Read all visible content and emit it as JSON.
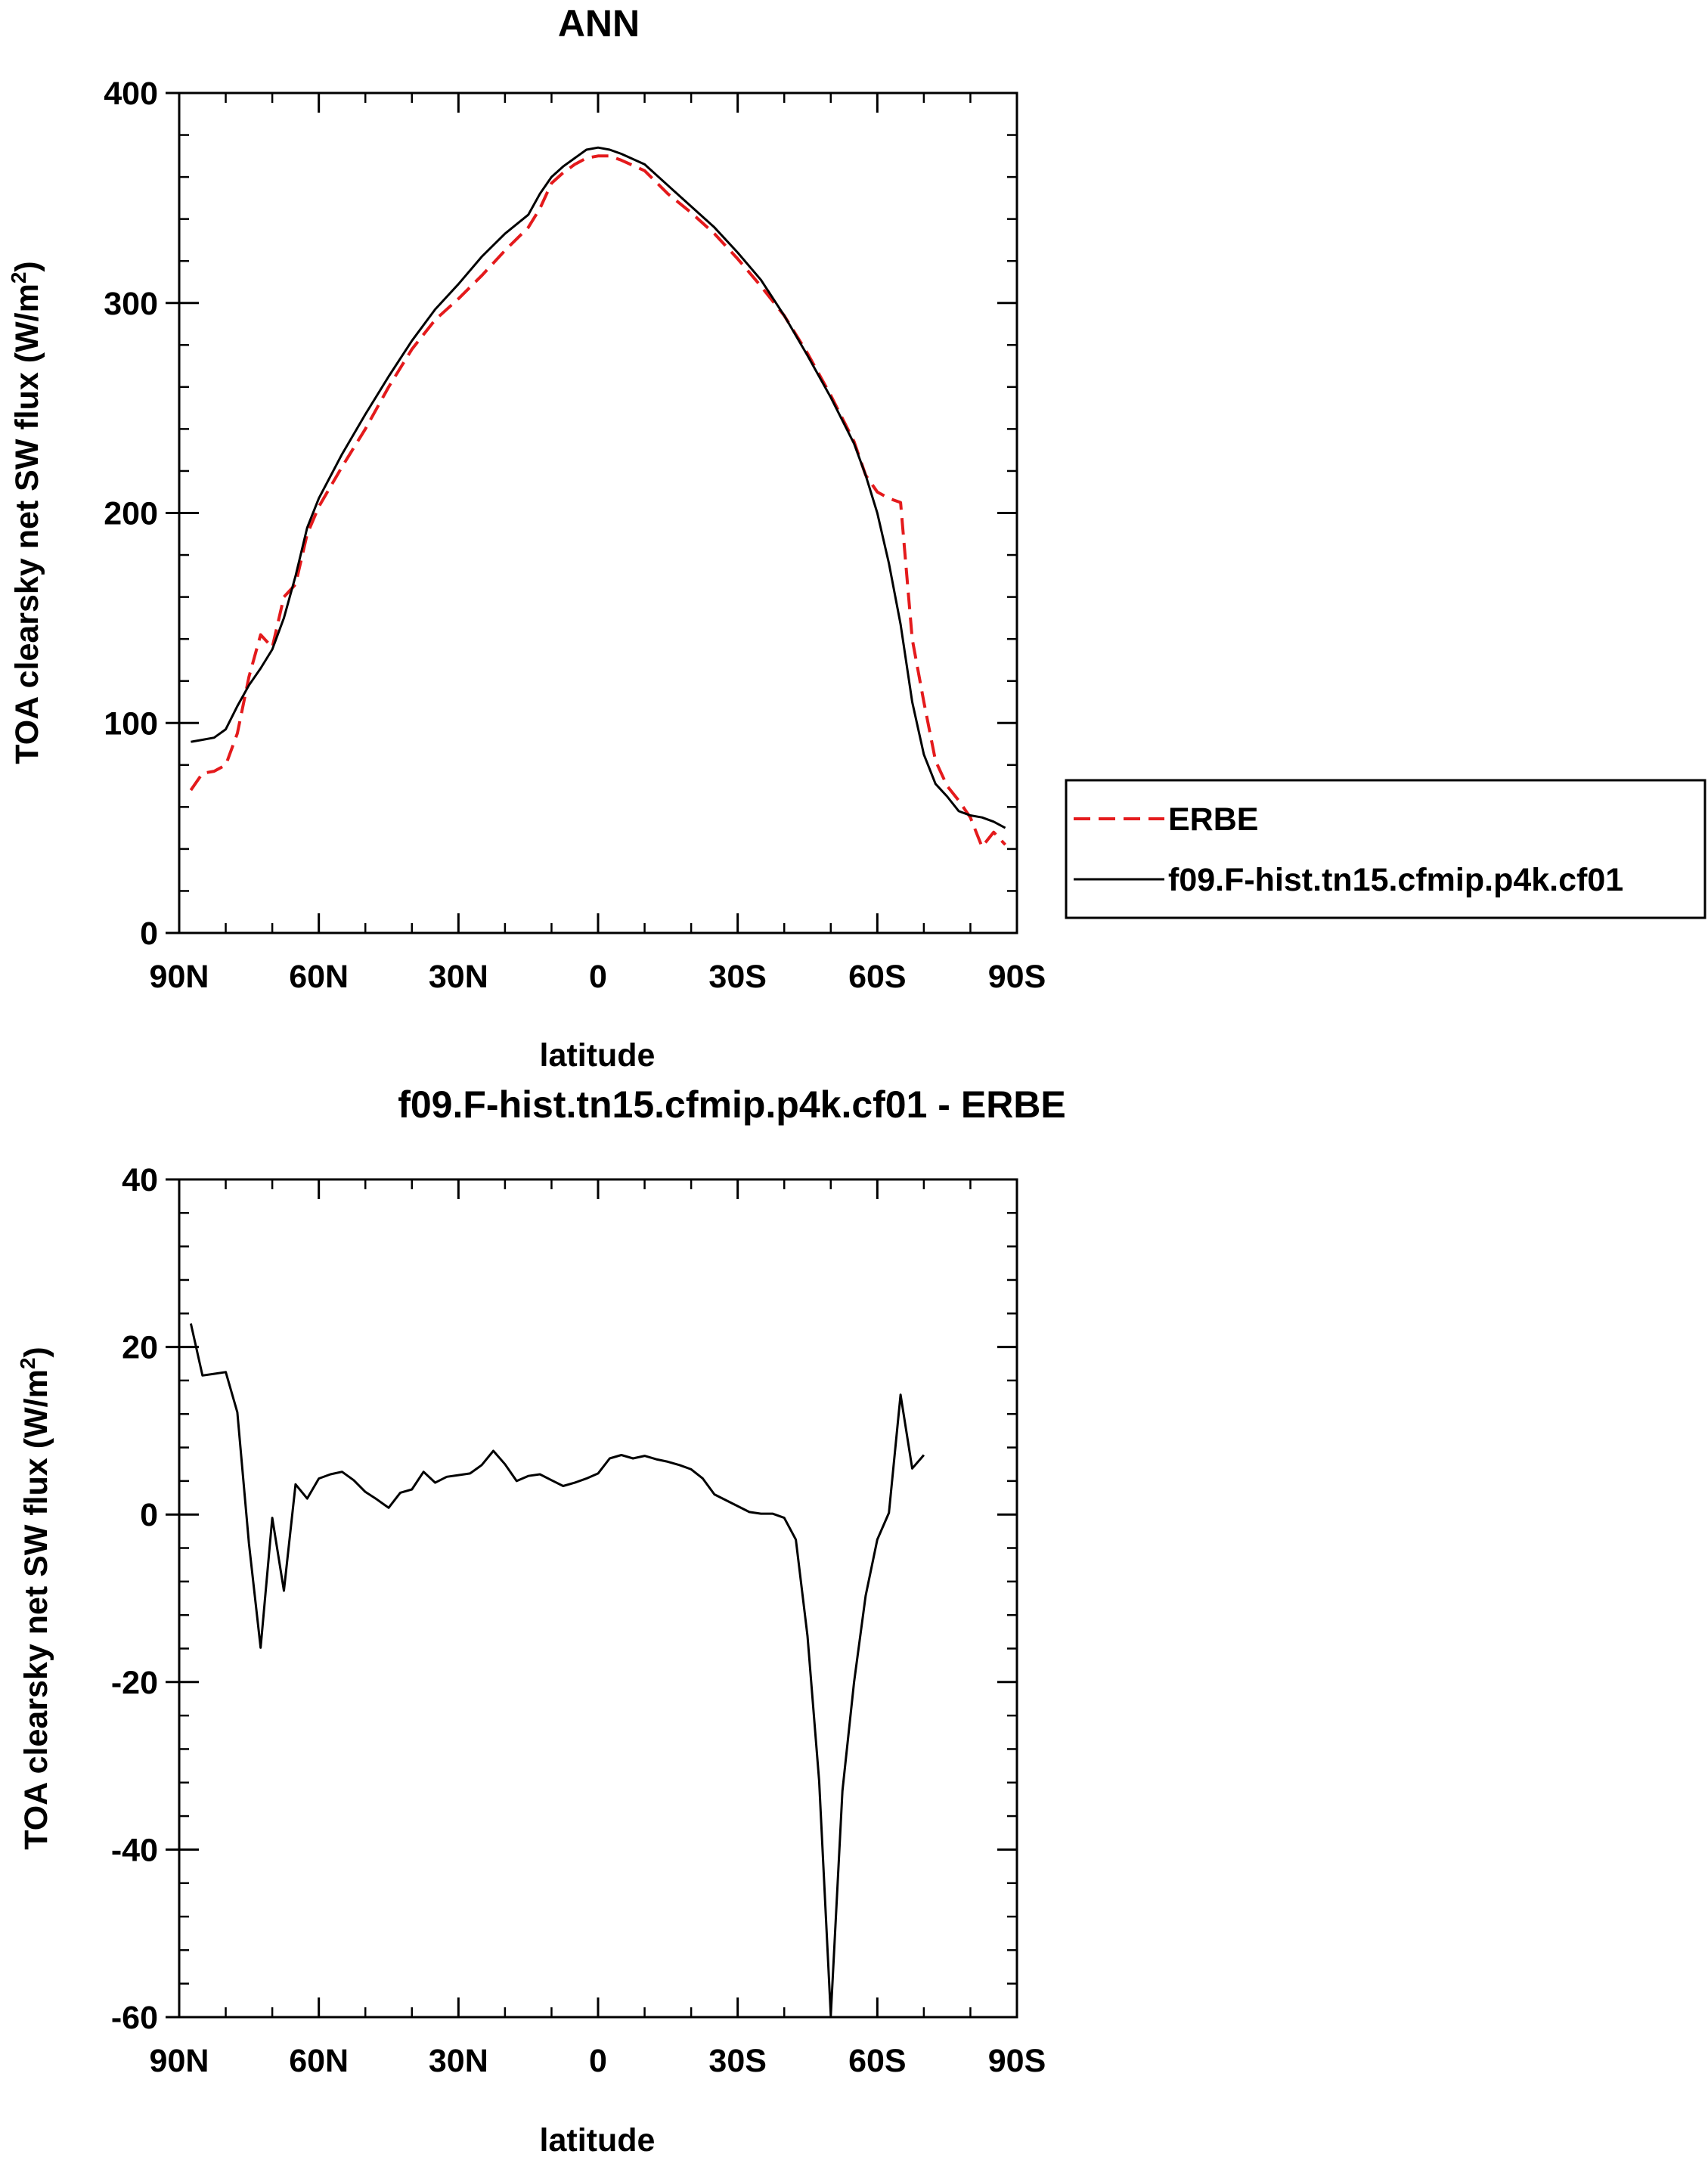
{
  "chart_data": [
    {
      "type": "line",
      "title": "ANN",
      "xlabel": "latitude",
      "ylabel": "TOA clearsky net SW flux (W/m",
      "ylabel_sup": "2",
      "ylabel_end": ")",
      "xlim": [
        90,
        -90
      ],
      "ylim": [
        0,
        400
      ],
      "x_ticks": [
        90,
        60,
        30,
        0,
        -30,
        -60,
        -90
      ],
      "x_tick_labels": [
        "90N",
        "60N",
        "30N",
        "0",
        "30S",
        "60S",
        "90S"
      ],
      "y_ticks": [
        0,
        100,
        200,
        300,
        400
      ],
      "y_tick_labels": [
        "0",
        "100",
        "200",
        "300",
        "400"
      ],
      "legend": {
        "placement": "right",
        "entries": [
          "ERBE",
          "f09.F-hist.tn15.cfmip.p4k.cf01"
        ]
      },
      "series": [
        {
          "name": "ERBE",
          "color": "#e41a1c",
          "dash": "dashed",
          "points": [
            [
              87.5,
              68
            ],
            [
              85,
              76
            ],
            [
              82.5,
              77
            ],
            [
              80,
              80
            ],
            [
              77.5,
              95
            ],
            [
              75,
              122
            ],
            [
              72.5,
              142
            ],
            [
              70,
              136
            ],
            [
              67.5,
              160
            ],
            [
              65,
              166
            ],
            [
              62.5,
              190
            ],
            [
              60,
              203
            ],
            [
              55,
              222
            ],
            [
              50,
              240
            ],
            [
              45,
              260
            ],
            [
              40,
              278
            ],
            [
              35,
              292
            ],
            [
              30,
              302
            ],
            [
              25,
              313
            ],
            [
              20,
              325
            ],
            [
              15,
              336
            ],
            [
              12.5,
              345
            ],
            [
              10,
              357
            ],
            [
              7.5,
              362
            ],
            [
              5,
              366
            ],
            [
              2.5,
              369
            ],
            [
              0,
              370
            ],
            [
              -2.5,
              370
            ],
            [
              -5,
              368
            ],
            [
              -10,
              363
            ],
            [
              -15,
              352
            ],
            [
              -20,
              343
            ],
            [
              -25,
              333
            ],
            [
              -30,
              321
            ],
            [
              -35,
              308
            ],
            [
              -40,
              294
            ],
            [
              -45,
              276
            ],
            [
              -50,
              256
            ],
            [
              -55,
              234
            ],
            [
              -57.5,
              218
            ],
            [
              -60,
              210
            ],
            [
              -62.5,
              207
            ],
            [
              -65,
              205
            ],
            [
              -67.5,
              140
            ],
            [
              -70,
              110
            ],
            [
              -72.5,
              82
            ],
            [
              -75,
              70
            ],
            [
              -77.5,
              63
            ],
            [
              -80,
              55
            ],
            [
              -82.5,
              41
            ],
            [
              -85,
              48
            ],
            [
              -87.5,
              42
            ]
          ]
        },
        {
          "name": "f09.F-hist.tn15.cfmip.p4k.cf01",
          "color": "#000000",
          "dash": "solid",
          "points": [
            [
              87.5,
              91
            ],
            [
              85,
              92
            ],
            [
              82.5,
              93
            ],
            [
              80,
              97
            ],
            [
              77.5,
              108
            ],
            [
              75,
              118
            ],
            [
              72.5,
              126
            ],
            [
              70,
              135
            ],
            [
              67.5,
              150
            ],
            [
              65,
              170
            ],
            [
              62.5,
              193
            ],
            [
              60,
              207
            ],
            [
              55,
              228
            ],
            [
              50,
              247
            ],
            [
              45,
              265
            ],
            [
              40,
              282
            ],
            [
              35,
              297
            ],
            [
              30,
              309
            ],
            [
              25,
              322
            ],
            [
              20,
              333
            ],
            [
              15,
              342
            ],
            [
              12.5,
              352
            ],
            [
              10,
              360
            ],
            [
              7.5,
              365
            ],
            [
              5,
              369
            ],
            [
              2.5,
              373
            ],
            [
              0,
              374
            ],
            [
              -2.5,
              373
            ],
            [
              -5,
              371
            ],
            [
              -10,
              366
            ],
            [
              -15,
              356
            ],
            [
              -20,
              346
            ],
            [
              -25,
              336
            ],
            [
              -30,
              324
            ],
            [
              -35,
              311
            ],
            [
              -40,
              294
            ],
            [
              -45,
              275
            ],
            [
              -50,
              255
            ],
            [
              -55,
              233
            ],
            [
              -57.5,
              218
            ],
            [
              -60,
              200
            ],
            [
              -62.5,
              176
            ],
            [
              -65,
              147
            ],
            [
              -67.5,
              110
            ],
            [
              -70,
              85
            ],
            [
              -72.5,
              71
            ],
            [
              -75,
              65
            ],
            [
              -77.5,
              58
            ],
            [
              -80,
              56
            ],
            [
              -82.5,
              55
            ],
            [
              -85,
              53
            ],
            [
              -87.5,
              50
            ]
          ]
        }
      ]
    },
    {
      "type": "line",
      "title": "f09.F-hist.tn15.cfmip.p4k.cf01 - ERBE",
      "xlabel": "latitude",
      "ylabel": "TOA clearsky net SW flux (W/m",
      "ylabel_sup": "2",
      "ylabel_end": ")",
      "xlim": [
        90,
        -90
      ],
      "ylim": [
        -60,
        40
      ],
      "x_ticks": [
        90,
        60,
        30,
        0,
        -30,
        -60,
        -90
      ],
      "x_tick_labels": [
        "90N",
        "60N",
        "30N",
        "0",
        "30S",
        "60S",
        "90S"
      ],
      "y_ticks": [
        -60,
        -40,
        -20,
        0,
        20,
        40
      ],
      "y_tick_labels": [
        "-60",
        "-40",
        "-20",
        "0",
        "20",
        "40"
      ],
      "series": [
        {
          "color": "#000000",
          "dash": "solid",
          "points": [
            [
              87.5,
              22.8
            ],
            [
              85,
              16.6
            ],
            [
              82.5,
              16.8
            ],
            [
              80,
              17.0
            ],
            [
              77.5,
              12.2
            ],
            [
              75,
              -3.5
            ],
            [
              72.5,
              -15.9
            ],
            [
              70,
              -0.4
            ],
            [
              67.5,
              -9.1
            ],
            [
              65,
              3.6
            ],
            [
              62.5,
              1.9
            ],
            [
              60,
              4.3
            ],
            [
              57.5,
              4.8
            ],
            [
              55,
              5.1
            ],
            [
              52.5,
              4.1
            ],
            [
              50,
              2.7
            ],
            [
              47.5,
              1.8
            ],
            [
              45,
              0.8
            ],
            [
              42.5,
              2.6
            ],
            [
              40,
              3.0
            ],
            [
              37.5,
              5.1
            ],
            [
              35,
              3.8
            ],
            [
              32.5,
              4.5
            ],
            [
              30,
              4.7
            ],
            [
              27.5,
              4.9
            ],
            [
              25,
              5.9
            ],
            [
              22.5,
              7.6
            ],
            [
              20,
              6.0
            ],
            [
              17.5,
              4.0
            ],
            [
              15,
              4.6
            ],
            [
              12.5,
              4.8
            ],
            [
              10,
              4.1
            ],
            [
              7.5,
              3.4
            ],
            [
              5,
              3.8
            ],
            [
              2.5,
              4.3
            ],
            [
              0,
              4.9
            ],
            [
              -2.5,
              6.7
            ],
            [
              -5,
              7.1
            ],
            [
              -7.5,
              6.7
            ],
            [
              -10,
              7.0
            ],
            [
              -12.5,
              6.6
            ],
            [
              -15,
              6.3
            ],
            [
              -17.5,
              5.9
            ],
            [
              -20,
              5.4
            ],
            [
              -22.5,
              4.3
            ],
            [
              -25,
              2.4
            ],
            [
              -27.5,
              1.7
            ],
            [
              -30,
              1.0
            ],
            [
              -32.5,
              0.3
            ],
            [
              -35,
              0.1
            ],
            [
              -37.5,
              0.1
            ],
            [
              -40,
              -0.4
            ],
            [
              -42.5,
              -3.0
            ],
            [
              -45,
              -14.5
            ],
            [
              -47.5,
              -31.8
            ],
            [
              -50,
              -59.8
            ],
            [
              -52.5,
              -33.0
            ],
            [
              -55,
              -20.0
            ],
            [
              -57.5,
              -9.7
            ],
            [
              -60,
              -3.0
            ],
            [
              -62.5,
              0.2
            ],
            [
              -65,
              14.3
            ],
            [
              -67.5,
              5.5
            ],
            [
              -70,
              7.1
            ]
          ]
        }
      ]
    }
  ]
}
